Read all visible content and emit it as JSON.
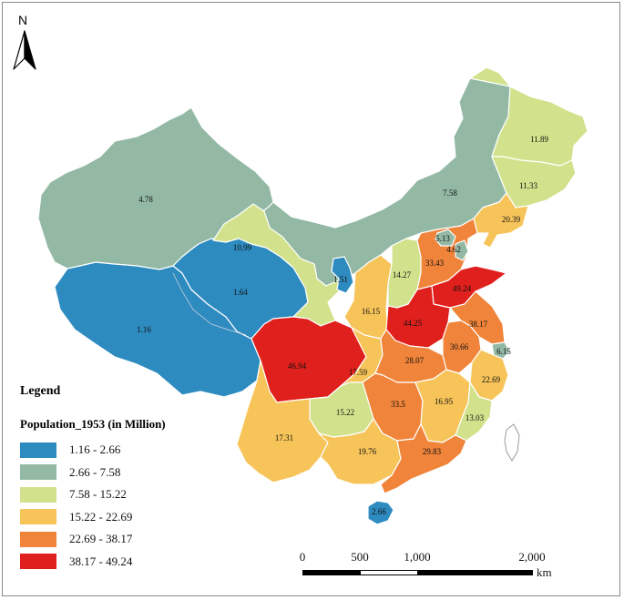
{
  "legend": {
    "title": "Legend",
    "subtitle": "Population_1953 (in Million)",
    "classes": [
      {
        "range": "1.16 - 2.66",
        "color": "#2e8bc0"
      },
      {
        "range": "2.66 - 7.58",
        "color": "#93b9a5"
      },
      {
        "range": "7.58 - 15.22",
        "color": "#d2e28c"
      },
      {
        "range": "15.22 - 22.69",
        "color": "#f7c45a"
      },
      {
        "range": "22.69 - 38.17",
        "color": "#f0843a"
      },
      {
        "range": "38.17 - 49.24",
        "color": "#e0201c"
      }
    ]
  },
  "north_arrow": {
    "label": "N"
  },
  "scale_bar": {
    "ticks": [
      "0",
      "500",
      "1,000",
      "2,000"
    ],
    "unit": "km"
  },
  "regions": [
    {
      "id": "xinjiang",
      "value": "4.78",
      "class": 1
    },
    {
      "id": "tibet",
      "value": "1.16",
      "class": 0
    },
    {
      "id": "qinghai",
      "value": "1.64",
      "class": 0
    },
    {
      "id": "inner-mongolia",
      "value": "7.58",
      "class": 1
    },
    {
      "id": "heilongjiang",
      "value": "11.89",
      "class": 2
    },
    {
      "id": "jilin",
      "value": "11.33",
      "class": 2
    },
    {
      "id": "liaoning",
      "value": "20.39",
      "class": 3
    },
    {
      "id": "gansu",
      "value": "10.99",
      "class": 2
    },
    {
      "id": "ningxia",
      "value": "1.51",
      "class": 0
    },
    {
      "id": "shaanxi",
      "value": "16.15",
      "class": 3
    },
    {
      "id": "shanxi",
      "value": "14.27",
      "class": 2
    },
    {
      "id": "hebei",
      "value": "33.43",
      "class": 4
    },
    {
      "id": "beijing",
      "value": "5.13",
      "class": 1
    },
    {
      "id": "tianjin",
      "value": "4.62",
      "class": 1
    },
    {
      "id": "shandong",
      "value": "49.24",
      "class": 5
    },
    {
      "id": "henan",
      "value": "44.25",
      "class": 5
    },
    {
      "id": "jiangsu",
      "value": "38.17",
      "class": 4
    },
    {
      "id": "anhui",
      "value": "30.66",
      "class": 4
    },
    {
      "id": "shanghai",
      "value": "6.15",
      "class": 1
    },
    {
      "id": "sichuan",
      "value": "46.94",
      "class": 5
    },
    {
      "id": "hubei",
      "value": "28.07",
      "class": 4
    },
    {
      "id": "chongqing",
      "value": "17.59",
      "class": 3
    },
    {
      "id": "zhejiang",
      "value": "22.69",
      "class": 3
    },
    {
      "id": "hunan",
      "value": "33.5",
      "class": 4
    },
    {
      "id": "jiangxi",
      "value": "16.95",
      "class": 3
    },
    {
      "id": "fujian",
      "value": "13.03",
      "class": 2
    },
    {
      "id": "guizhou",
      "value": "15.22",
      "class": 2
    },
    {
      "id": "yunnan",
      "value": "17.31",
      "class": 3
    },
    {
      "id": "guangxi",
      "value": "19.76",
      "class": 3
    },
    {
      "id": "guangdong",
      "value": "29.83",
      "class": 4
    },
    {
      "id": "hainan",
      "value": "2.66",
      "class": 0
    }
  ]
}
